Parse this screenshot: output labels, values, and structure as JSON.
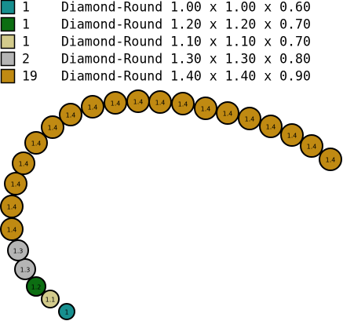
{
  "legend": [
    {
      "color": "#178f8f",
      "count": "1",
      "text": "Diamond-Round 1.00 x 1.00 x 0.60"
    },
    {
      "color": "#0c6e12",
      "count": "1",
      "text": "Diamond-Round 1.20 x 1.20 x 0.70"
    },
    {
      "color": "#d3cb8c",
      "count": "1",
      "text": "Diamond-Round 1.10 x 1.10 x 0.70"
    },
    {
      "color": "#b5b5b5",
      "count": "2",
      "text": "Diamond-Round 1.30 x 1.30 x 0.80"
    },
    {
      "color": "#c08a12",
      "count": "19",
      "text": "Diamond-Round 1.40 x 1.40 x 0.90"
    }
  ],
  "stones": [
    {
      "label": "1",
      "color": "#178f8f"
    },
    {
      "label": "1.1",
      "color": "#d3cb8c"
    },
    {
      "label": "1.2",
      "color": "#0c6e12"
    },
    {
      "label": "1.3",
      "color": "#b5b5b5"
    },
    {
      "label": "1.3",
      "color": "#b5b5b5"
    },
    {
      "label": "1.4",
      "color": "#c08a12"
    },
    {
      "label": "1.4",
      "color": "#c08a12"
    },
    {
      "label": "1.4",
      "color": "#c08a12"
    },
    {
      "label": "1.4",
      "color": "#c08a12"
    },
    {
      "label": "1.4",
      "color": "#c08a12"
    },
    {
      "label": "1.4",
      "color": "#c08a12"
    },
    {
      "label": "1.4",
      "color": "#c08a12"
    },
    {
      "label": "1.4",
      "color": "#c08a12"
    },
    {
      "label": "1.4",
      "color": "#c08a12"
    },
    {
      "label": "1.4",
      "color": "#c08a12"
    },
    {
      "label": "1.4",
      "color": "#c08a12"
    },
    {
      "label": "1.4",
      "color": "#c08a12"
    },
    {
      "label": "1.4",
      "color": "#c08a12"
    },
    {
      "label": "1.4",
      "color": "#c08a12"
    },
    {
      "label": "1.4",
      "color": "#c08a12"
    },
    {
      "label": "1.4",
      "color": "#c08a12"
    },
    {
      "label": "1.4",
      "color": "#c08a12"
    },
    {
      "label": "1.4",
      "color": "#c08a12"
    },
    {
      "label": "1.4",
      "color": "#c08a12"
    }
  ]
}
